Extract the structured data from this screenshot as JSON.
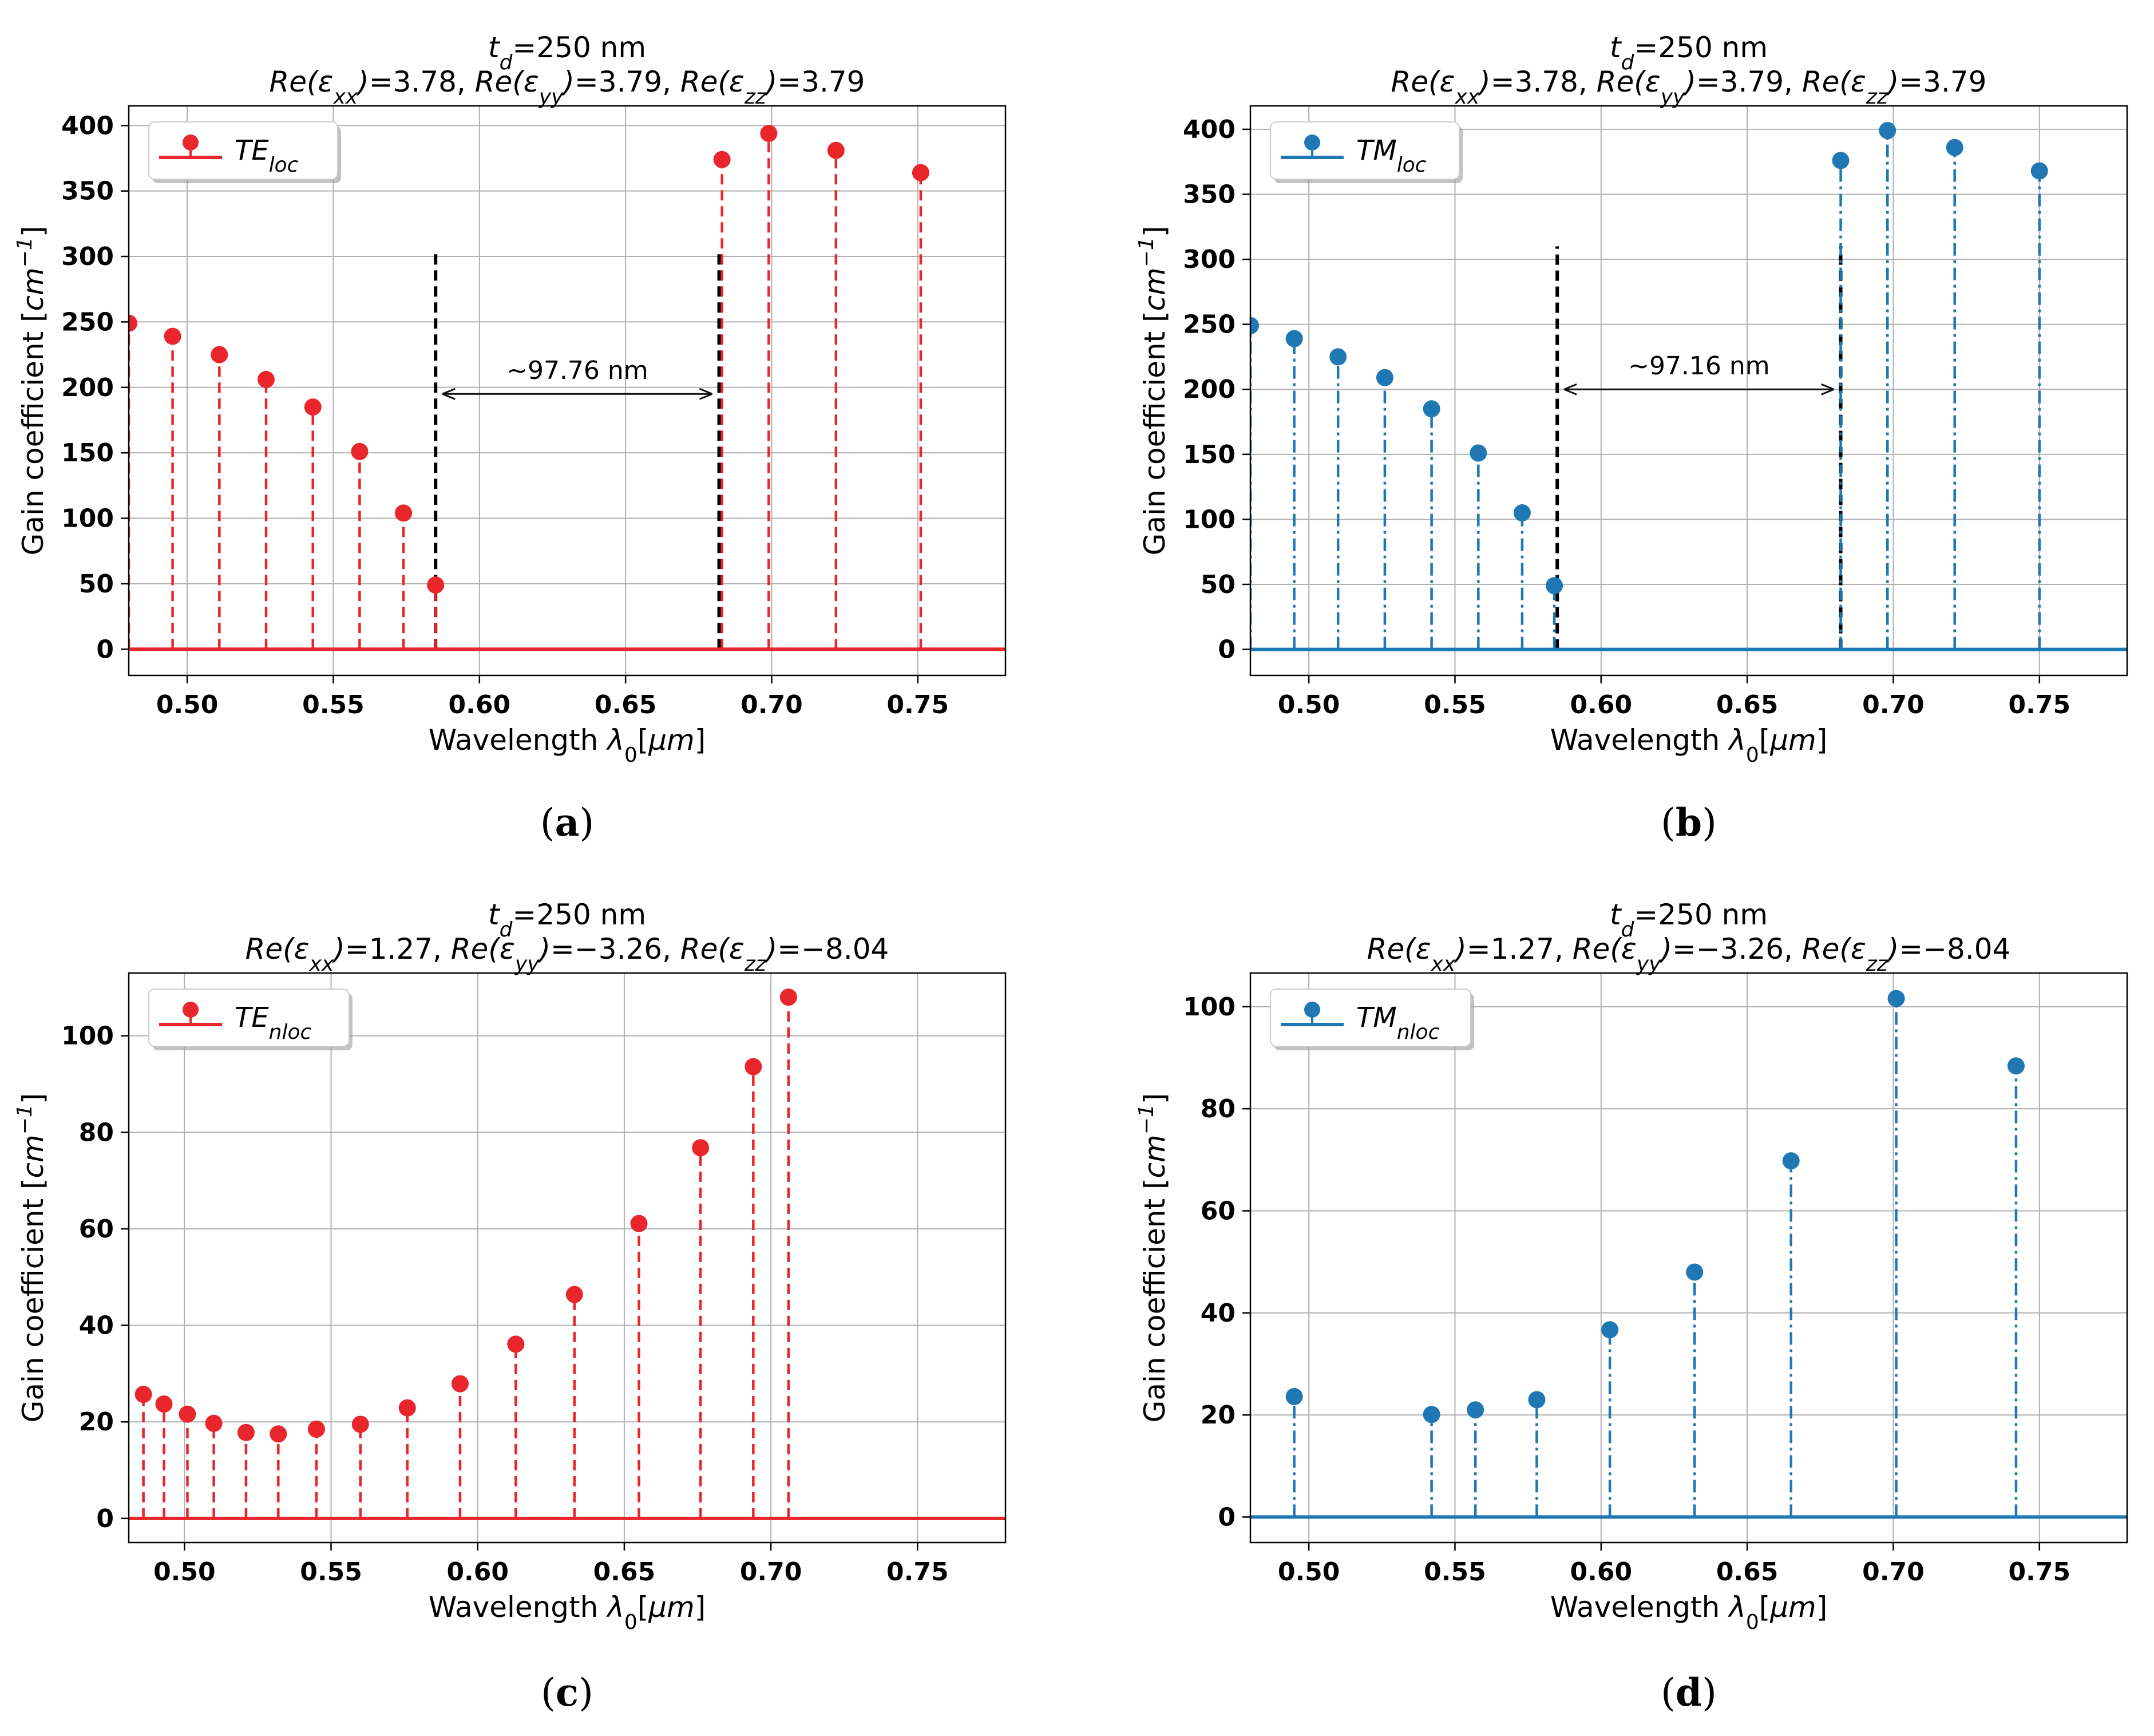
{
  "figure": {
    "x_label": "Wavelength λ₀[μm]",
    "y_label": "Gain coefficient [cm⁻¹]",
    "colors": {
      "red": "#e8262b",
      "blue": "#1f77b4",
      "grid": "#b0b0b0",
      "annotation": "#111111"
    }
  },
  "chart_data": [
    {
      "id": "a",
      "type": "stem",
      "caption_letter": "a",
      "title_line1": "t_d=250 nm",
      "title_line2": "Re(ε_xx)=3.78, Re(ε_yy)=3.79, Re(ε_zz)=3.79",
      "legend": "TE_loc",
      "color": "#e8262b",
      "line_style": "dashed",
      "xlim": [
        0.48,
        0.78
      ],
      "ylim": [
        -20,
        415
      ],
      "xticks": [
        0.5,
        0.55,
        0.6,
        0.65,
        0.7,
        0.75
      ],
      "yticks": [
        0,
        50,
        100,
        150,
        200,
        250,
        300,
        350,
        400
      ],
      "x": [
        0.48,
        0.495,
        0.511,
        0.527,
        0.543,
        0.559,
        0.574,
        0.585,
        0.683,
        0.699,
        0.722,
        0.751
      ],
      "y": [
        249,
        239,
        225,
        206,
        185,
        151,
        104,
        49,
        374,
        394,
        381,
        364
      ],
      "gap_markers": [
        {
          "x": 0.585,
          "y_top": 305
        },
        {
          "x": 0.682,
          "y_top": 305
        }
      ],
      "annotation": {
        "text": "~97.76 nm",
        "x_from": 0.585,
        "x_to": 0.682,
        "y": 195
      }
    },
    {
      "id": "b",
      "type": "stem",
      "caption_letter": "b",
      "title_line1": "t_d=250 nm",
      "title_line2": "Re(ε_xx)=3.78, Re(ε_yy)=3.79, Re(ε_zz)=3.79",
      "legend": "TM_loc",
      "color": "#1f77b4",
      "line_style": "dashdot",
      "xlim": [
        0.48,
        0.78
      ],
      "ylim": [
        -20,
        418
      ],
      "xticks": [
        0.5,
        0.55,
        0.6,
        0.65,
        0.7,
        0.75
      ],
      "yticks": [
        0,
        50,
        100,
        150,
        200,
        250,
        300,
        350,
        400
      ],
      "x": [
        0.48,
        0.495,
        0.51,
        0.526,
        0.542,
        0.558,
        0.573,
        0.584,
        0.682,
        0.698,
        0.721,
        0.75
      ],
      "y": [
        249,
        239,
        225,
        209,
        185,
        151,
        105,
        49,
        376,
        399,
        386,
        368
      ],
      "gap_markers": [
        {
          "x": 0.585,
          "y_top": 310
        },
        {
          "x": 0.682,
          "y_top": 310
        }
      ],
      "annotation": {
        "text": "~97.16 nm",
        "x_from": 0.585,
        "x_to": 0.682,
        "y": 200
      }
    },
    {
      "id": "c",
      "type": "stem",
      "caption_letter": "c",
      "title_line1": "t_d=250 nm",
      "title_line2": "Re(ε_xx)=1.27, Re(ε_yy)=−3.26, Re(ε_zz)=−8.04",
      "legend": "TE_nloc",
      "color": "#e8262b",
      "line_style": "dashed",
      "xlim": [
        0.481,
        0.78
      ],
      "ylim": [
        -5,
        113
      ],
      "xticks": [
        0.5,
        0.55,
        0.6,
        0.65,
        0.7,
        0.75
      ],
      "yticks": [
        0,
        20,
        40,
        60,
        80,
        100
      ],
      "x": [
        0.486,
        0.493,
        0.501,
        0.51,
        0.521,
        0.532,
        0.545,
        0.56,
        0.576,
        0.594,
        0.613,
        0.633,
        0.655,
        0.676,
        0.694,
        0.706
      ],
      "y": [
        25.7,
        23.7,
        21.6,
        19.7,
        17.8,
        17.5,
        18.5,
        19.5,
        22.9,
        27.9,
        36.1,
        46.4,
        61.1,
        76.8,
        93.6,
        108.0
      ],
      "gap_markers": [],
      "annotation": null
    },
    {
      "id": "d",
      "type": "stem",
      "caption_letter": "d",
      "title_line1": "t_d=250 nm",
      "title_line2": "Re(ε_xx)=1.27, Re(ε_yy)=−3.26, Re(ε_zz)=−8.04",
      "legend": "TM_nloc",
      "color": "#1f77b4",
      "line_style": "dashdot",
      "xlim": [
        0.48,
        0.78
      ],
      "ylim": [
        -5,
        106.6
      ],
      "xticks": [
        0.5,
        0.55,
        0.6,
        0.65,
        0.7,
        0.75
      ],
      "yticks": [
        0,
        20,
        40,
        60,
        80,
        100
      ],
      "x": [
        0.495,
        0.542,
        0.557,
        0.578,
        0.603,
        0.632,
        0.665,
        0.701,
        0.742
      ],
      "y": [
        23.6,
        20.1,
        21.0,
        23.0,
        36.7,
        48.0,
        69.8,
        101.6,
        88.4
      ],
      "gap_markers": [],
      "annotation": null
    }
  ]
}
